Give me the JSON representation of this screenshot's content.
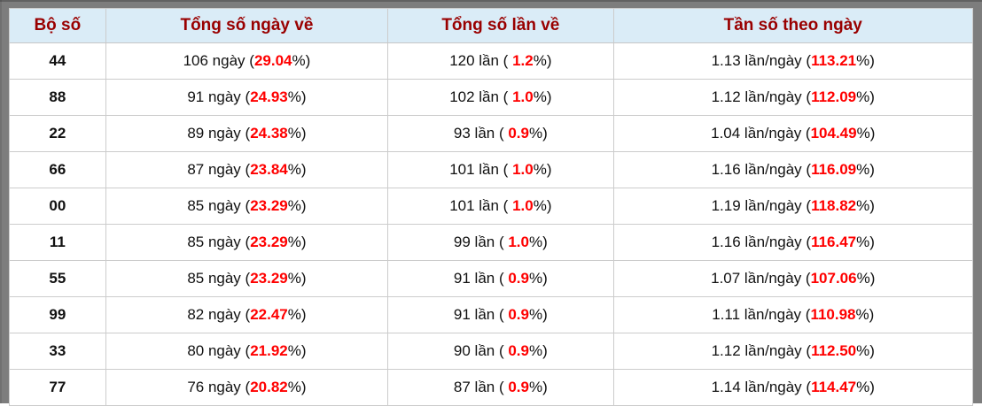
{
  "table": {
    "headers": [
      "Bộ số",
      "Tổng số ngày về",
      "Tổng số lần về",
      "Tần số theo ngày"
    ],
    "colors": {
      "header_bg": "#daecf7",
      "header_text": "#990000",
      "highlight_red": "#ff0000",
      "frame_gray": "#7d7d7d",
      "cell_border": "#cccccc"
    },
    "rows": [
      {
        "so": "44",
        "ngay": {
          "pre": "106 ngày (",
          "red": "29.04",
          "post": "%)"
        },
        "lan": {
          "pre": "120 lần ( ",
          "red": "1.2",
          "post": "%)"
        },
        "tanso": {
          "pre": "1.13 lần/ngày (",
          "red": "113.21",
          "post": "%)"
        }
      },
      {
        "so": "88",
        "ngay": {
          "pre": "91 ngày (",
          "red": "24.93",
          "post": "%)"
        },
        "lan": {
          "pre": "102 lần ( ",
          "red": "1.0",
          "post": "%)"
        },
        "tanso": {
          "pre": "1.12 lần/ngày (",
          "red": "112.09",
          "post": "%)"
        }
      },
      {
        "so": "22",
        "ngay": {
          "pre": "89 ngày (",
          "red": "24.38",
          "post": "%)"
        },
        "lan": {
          "pre": "93 lần ( ",
          "red": "0.9",
          "post": "%)"
        },
        "tanso": {
          "pre": "1.04 lần/ngày (",
          "red": "104.49",
          "post": "%)"
        }
      },
      {
        "so": "66",
        "ngay": {
          "pre": "87 ngày (",
          "red": "23.84",
          "post": "%)"
        },
        "lan": {
          "pre": "101 lần ( ",
          "red": "1.0",
          "post": "%)"
        },
        "tanso": {
          "pre": "1.16 lần/ngày (",
          "red": "116.09",
          "post": "%)"
        }
      },
      {
        "so": "00",
        "ngay": {
          "pre": "85 ngày (",
          "red": "23.29",
          "post": "%)"
        },
        "lan": {
          "pre": "101 lần ( ",
          "red": "1.0",
          "post": "%)"
        },
        "tanso": {
          "pre": "1.19 lần/ngày (",
          "red": "118.82",
          "post": "%)"
        }
      },
      {
        "so": "11",
        "ngay": {
          "pre": "85 ngày (",
          "red": "23.29",
          "post": "%)"
        },
        "lan": {
          "pre": "99 lần ( ",
          "red": "1.0",
          "post": "%)"
        },
        "tanso": {
          "pre": "1.16 lần/ngày (",
          "red": "116.47",
          "post": "%)"
        }
      },
      {
        "so": "55",
        "ngay": {
          "pre": "85 ngày (",
          "red": "23.29",
          "post": "%)"
        },
        "lan": {
          "pre": "91 lần ( ",
          "red": "0.9",
          "post": "%)"
        },
        "tanso": {
          "pre": "1.07 lần/ngày (",
          "red": "107.06",
          "post": "%)"
        }
      },
      {
        "so": "99",
        "ngay": {
          "pre": "82 ngày (",
          "red": "22.47",
          "post": "%)"
        },
        "lan": {
          "pre": "91 lần ( ",
          "red": "0.9",
          "post": "%)"
        },
        "tanso": {
          "pre": "1.11 lần/ngày (",
          "red": "110.98",
          "post": "%)"
        }
      },
      {
        "so": "33",
        "ngay": {
          "pre": "80 ngày (",
          "red": "21.92",
          "post": "%)"
        },
        "lan": {
          "pre": "90 lần ( ",
          "red": "0.9",
          "post": "%)"
        },
        "tanso": {
          "pre": "1.12 lần/ngày (",
          "red": "112.50",
          "post": "%)"
        }
      },
      {
        "so": "77",
        "ngay": {
          "pre": "76 ngày (",
          "red": "20.82",
          "post": "%)"
        },
        "lan": {
          "pre": "87 lần ( ",
          "red": "0.9",
          "post": "%)"
        },
        "tanso": {
          "pre": "1.14 lần/ngày (",
          "red": "114.47",
          "post": "%)"
        }
      }
    ]
  }
}
